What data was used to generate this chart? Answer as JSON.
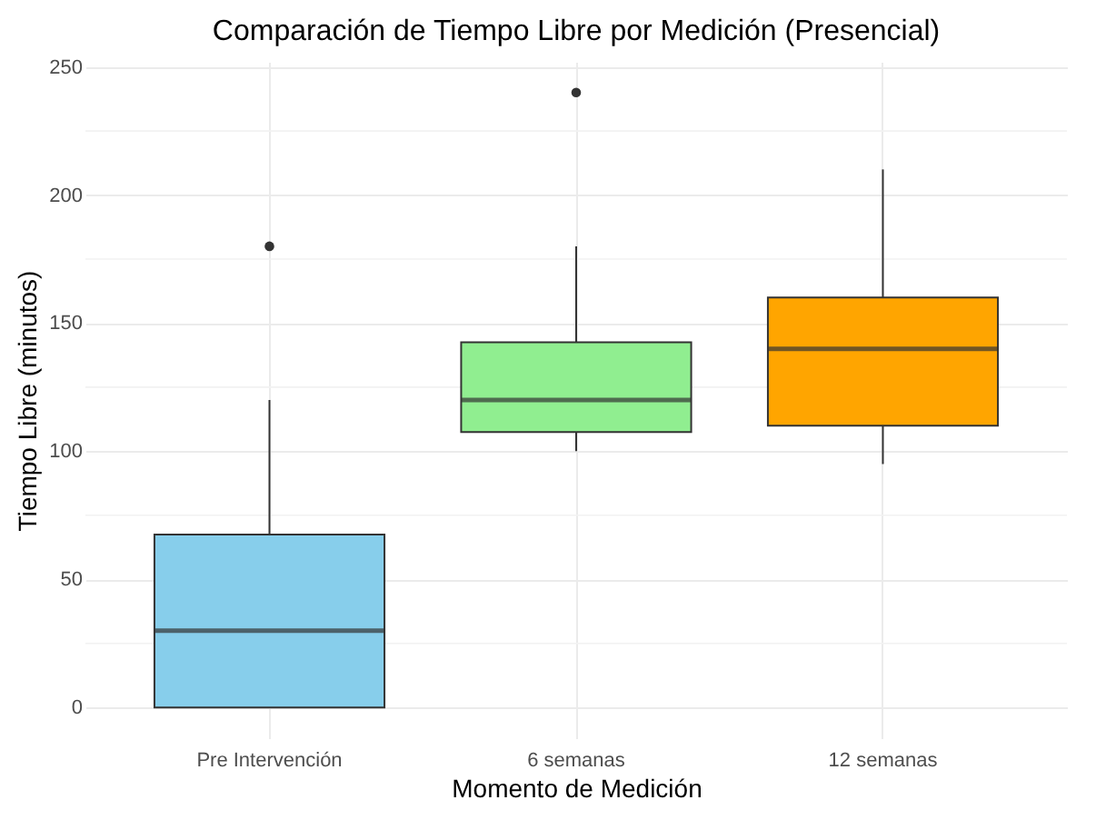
{
  "chart_data": {
    "type": "box",
    "title": "Comparación de Tiempo Libre por Medición (Presencial)",
    "xlabel": "Momento de Medición",
    "ylabel": "Tiempo Libre (minutos)",
    "categories": [
      "Pre Intervención",
      "6 semanas",
      "12 semanas"
    ],
    "colors": [
      "#87ceeb",
      "#90ee90",
      "#ffa500"
    ],
    "boxes": [
      {
        "low": 0,
        "q1": 0,
        "median": 30,
        "q3": 67.5,
        "high": 120,
        "outliers": [
          180
        ]
      },
      {
        "low": 100,
        "q1": 107.5,
        "median": 120,
        "q3": 142.5,
        "high": 180,
        "outliers": [
          240
        ]
      },
      {
        "low": 95,
        "q1": 110,
        "median": 140,
        "q3": 160,
        "high": 210
      }
    ],
    "ylim": [
      -12,
      252
    ],
    "yticks": [
      0,
      {
        "value": 25,
        "label": null
      },
      50,
      {
        "value": 75,
        "label": null
      },
      100,
      {
        "value": 125,
        "label": null
      },
      150,
      {
        "value": 175,
        "label": null
      },
      200,
      {
        "value": 225,
        "label": null
      },
      250
    ],
    "grid": true
  }
}
